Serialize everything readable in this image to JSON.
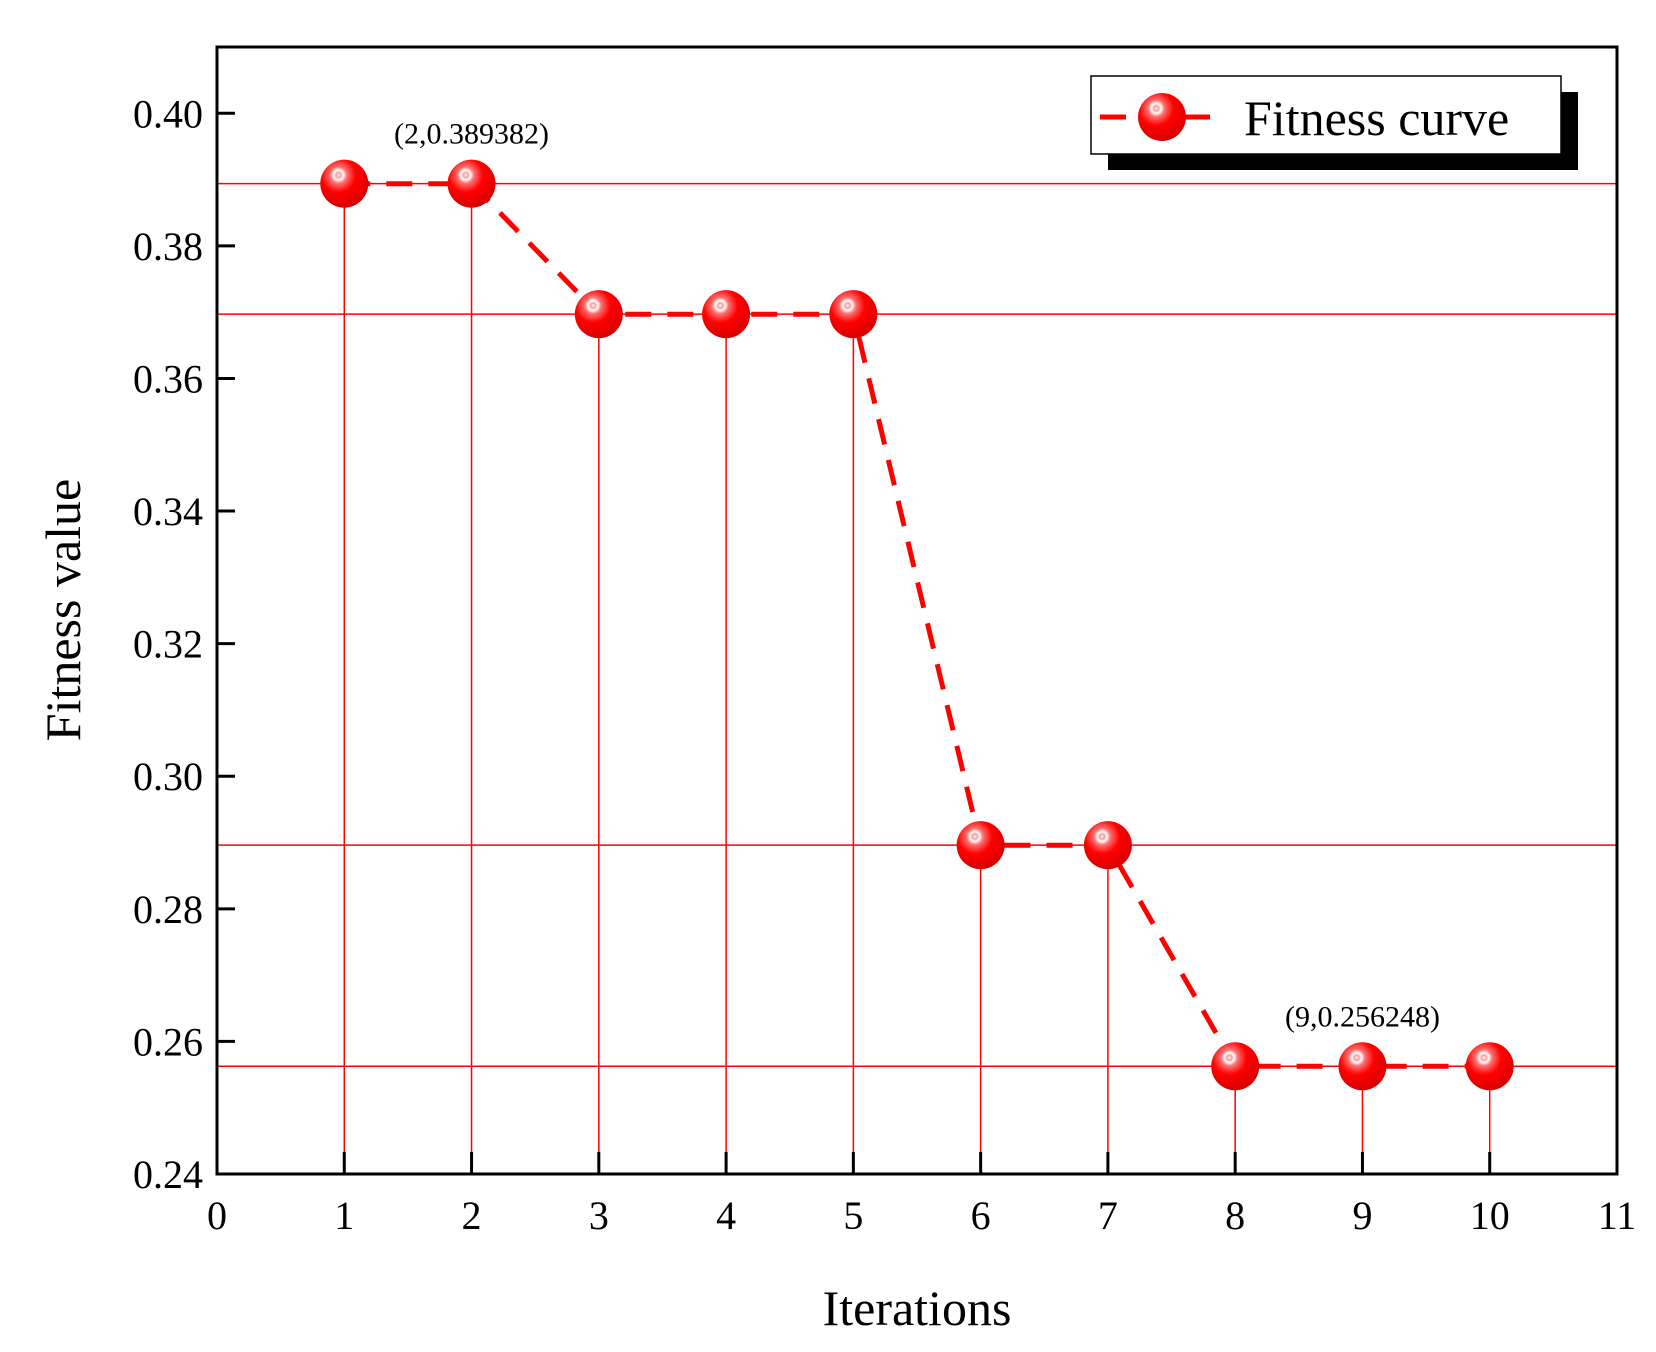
{
  "chart_data": {
    "type": "line",
    "xlabel": "Iterations",
    "ylabel": "Fitness value",
    "xlim": [
      0,
      11
    ],
    "ylim": [
      0.24,
      0.41
    ],
    "x_ticks": [
      0,
      1,
      2,
      3,
      4,
      5,
      6,
      7,
      8,
      9,
      10,
      11
    ],
    "x_tick_labels": [
      "0",
      "1",
      "2",
      "3",
      "4",
      "5",
      "6",
      "7",
      "8",
      "9",
      "10",
      "11"
    ],
    "y_ticks": [
      0.24,
      0.26,
      0.28,
      0.3,
      0.32,
      0.34,
      0.36,
      0.38,
      0.4
    ],
    "y_tick_labels": [
      "0.24",
      "0.26",
      "0.28",
      "0.30",
      "0.32",
      "0.34",
      "0.36",
      "0.38",
      "0.40"
    ],
    "grid": false,
    "legend_position": "top-right",
    "series": [
      {
        "name": "Fitness curve",
        "line_style": "dashed",
        "marker": "sphere",
        "color": "#ff0000",
        "x": [
          1,
          2,
          3,
          4,
          5,
          6,
          7,
          8,
          9,
          10
        ],
        "y": [
          0.389382,
          0.389382,
          0.3697,
          0.3697,
          0.3697,
          0.2896,
          0.2896,
          0.256248,
          0.256248,
          0.256248
        ]
      }
    ],
    "drop_lines": {
      "color": "#ff0000",
      "horizontal_levels": [
        0.389382,
        0.3697,
        0.2896,
        0.256248
      ]
    },
    "annotations": [
      {
        "text": "(2,0.389382)",
        "x": 2,
        "y": 0.389382
      },
      {
        "text": "(9,0.256248)",
        "x": 9,
        "y": 0.256248
      }
    ]
  }
}
